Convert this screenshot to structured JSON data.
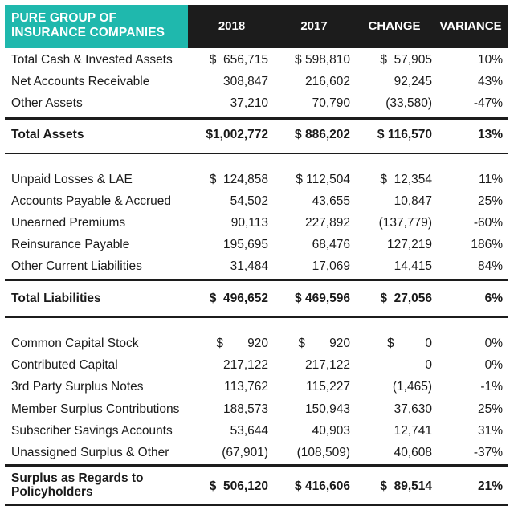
{
  "header": {
    "title_line1": "PURE GROUP OF",
    "title_line2": "INSURANCE COMPANIES",
    "col_2018": "2018",
    "col_2017": "2017",
    "col_change": "CHANGE",
    "col_variance": "VARIANCE"
  },
  "colors": {
    "accent": "#1fb8ad",
    "header_bg": "#1c1c1c"
  },
  "assets": [
    {
      "label": "Total Cash & Invested Assets",
      "y2018": "$  656,715",
      "y2017": "$ 598,810",
      "change": "$  57,905",
      "variance": "10%"
    },
    {
      "label": "Net Accounts Receivable",
      "y2018": "308,847",
      "y2017": "216,602",
      "change": "92,245",
      "variance": "43%"
    },
    {
      "label": "Other Assets",
      "y2018": "37,210",
      "y2017": "70,790",
      "change": "(33,580)",
      "variance": "-47%"
    }
  ],
  "total_assets": {
    "label": "Total Assets",
    "y2018": "$1,002,772",
    "y2017": "$ 886,202",
    "change": "$ 116,570",
    "variance": "13%"
  },
  "liabilities": [
    {
      "label": "Unpaid Losses & LAE",
      "y2018": "$  124,858",
      "y2017": "$ 112,504",
      "change": "$  12,354",
      "variance": "11%"
    },
    {
      "label": "Accounts Payable & Accrued",
      "y2018": "54,502",
      "y2017": "43,655",
      "change": "10,847",
      "variance": "25%"
    },
    {
      "label": "Unearned Premiums",
      "y2018": "90,113",
      "y2017": "227,892",
      "change": "(137,779)",
      "variance": "-60%"
    },
    {
      "label": "Reinsurance Payable",
      "y2018": "195,695",
      "y2017": "68,476",
      "change": "127,219",
      "variance": "186%"
    },
    {
      "label": "Other Current Liabilities",
      "y2018": "31,484",
      "y2017": "17,069",
      "change": "14,415",
      "variance": "84%"
    }
  ],
  "total_liabilities": {
    "label": "Total Liabilities",
    "y2018": "$  496,652",
    "y2017": "$ 469,596",
    "change": "$  27,056",
    "variance": "6%"
  },
  "surplus": [
    {
      "label": "Common Capital Stock",
      "y2018": "$       920",
      "y2017": "$       920",
      "change": "$         0",
      "variance": "0%"
    },
    {
      "label": "Contributed Capital",
      "y2018": "217,122",
      "y2017": "217,122",
      "change": "0",
      "variance": "0%"
    },
    {
      "label": "3rd Party Surplus Notes",
      "y2018": "113,762",
      "y2017": "115,227",
      "change": "(1,465)",
      "variance": "-1%"
    },
    {
      "label": "Member Surplus Contributions",
      "y2018": "188,573",
      "y2017": "150,943",
      "change": "37,630",
      "variance": "25%"
    },
    {
      "label": "Subscriber Savings Accounts",
      "y2018": "53,644",
      "y2017": "40,903",
      "change": "12,741",
      "variance": "31%"
    },
    {
      "label": "Unassigned Surplus & Other",
      "y2018": "(67,901)",
      "y2017": "(108,509)",
      "change": "40,608",
      "variance": "-37%"
    }
  ],
  "total_surplus": {
    "label_line1": "Surplus as Regards to",
    "label_line2": "Policyholders",
    "y2018": "$  506,120",
    "y2017": "$ 416,606",
    "change": "$  89,514",
    "variance": "21%"
  }
}
